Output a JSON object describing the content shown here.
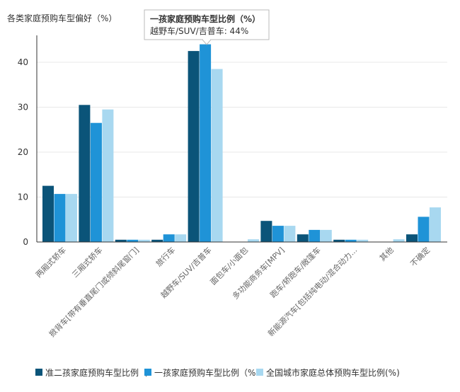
{
  "chart_data": {
    "type": "bar",
    "ylabel": "各类家庭预购车型偏好（%）",
    "ylim": [
      0,
      46
    ],
    "yticks": [
      0,
      10,
      20,
      30,
      40
    ],
    "categories": [
      "两厢式轿车",
      "三厢式轿车",
      "掀背车[带有垂直尾门或倾斜尾窗门]",
      "旅行车",
      "越野车/SUV/吉普车",
      "面包车/小面包",
      "多功能商务车[MPV]",
      "跑车/轿跑车/敞篷车",
      "新能源汽车[包括纯电动/混合动力...",
      "其他",
      "不确定"
    ],
    "series": [
      {
        "name": "准二孩家庭预购车型比例（%）",
        "color": "#0b5479",
        "values": [
          12.5,
          30.5,
          0.5,
          0.5,
          42.5,
          0,
          4.7,
          1.7,
          0.5,
          0,
          1.7
        ]
      },
      {
        "name": "一孩家庭预购车型比例（%）",
        "color": "#1f93d7",
        "values": [
          10.7,
          26.5,
          0.5,
          1.7,
          44,
          0,
          3.6,
          2.7,
          0.5,
          0,
          5.6
        ]
      },
      {
        "name": "全国城市家庭总体预购车型比例(%)",
        "color": "#a8d8f0",
        "values": [
          10.7,
          29.5,
          0.5,
          1.7,
          38.5,
          0.6,
          3.6,
          2.7,
          0.5,
          0.6,
          7.7
        ]
      }
    ],
    "legend_position": "bottom",
    "legend_labels": [
      "准二孩家庭预购车型比例（",
      "一孩家庭预购车型比例（%",
      "全国城市家庭总体预购车型比例(%)"
    ],
    "tooltip": {
      "title": "一孩家庭预购车型比例（%）",
      "body": "越野车/SUV/吉普车: 44%"
    }
  }
}
